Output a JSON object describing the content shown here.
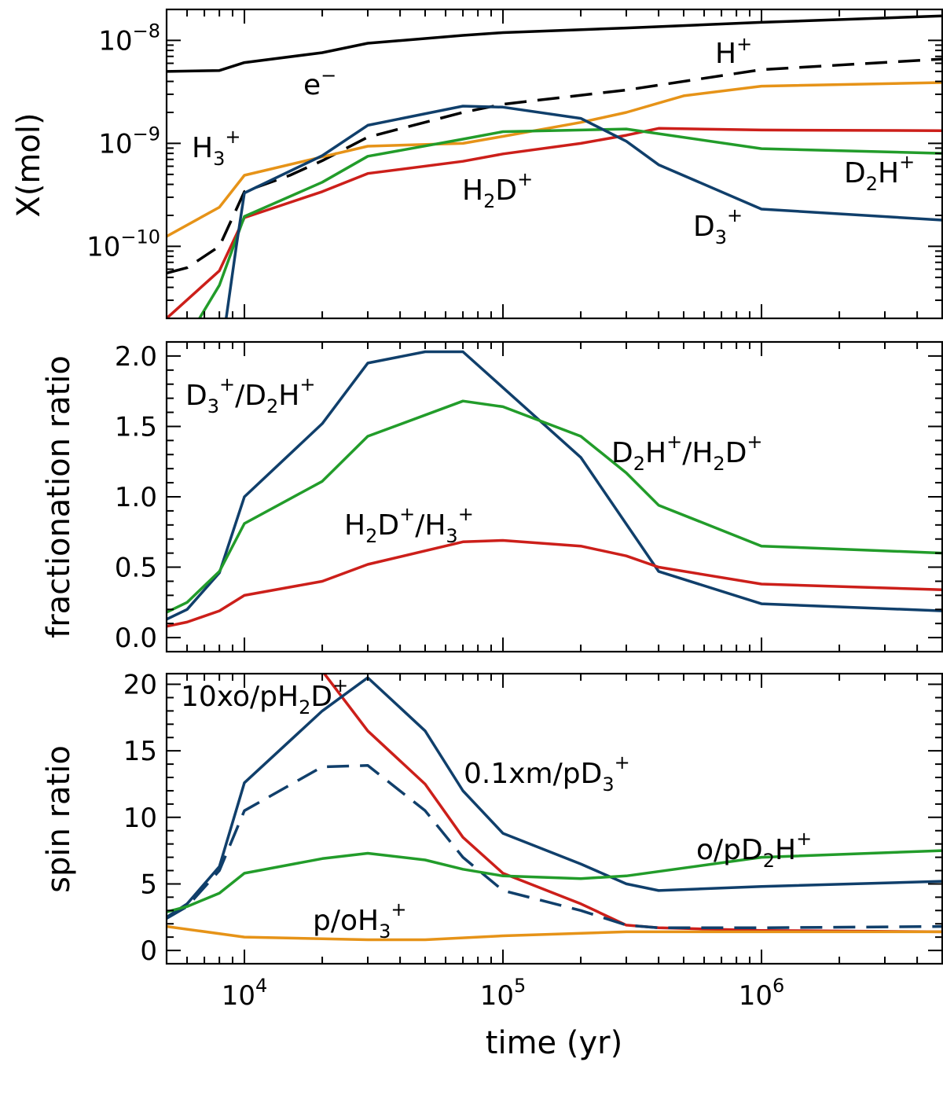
{
  "chart_data": [
    {
      "id": "top",
      "type": "line",
      "yscale": "log",
      "ylabel": "X(mol)",
      "xlim": [
        5000,
        5000000
      ],
      "ylim": [
        2e-11,
        2e-08
      ],
      "yticks": [
        {
          "value": 1e-10,
          "base": "10",
          "exp": "−10"
        },
        {
          "value": 1e-09,
          "base": "10",
          "exp": "−9"
        },
        {
          "value": 1e-08,
          "base": "10",
          "exp": "−8"
        }
      ],
      "series": [
        {
          "name": "e−",
          "color": "#000000",
          "dash": "",
          "x": [
            5000,
            8000,
            10000,
            20000,
            30000,
            70000,
            100000,
            300000,
            1000000,
            5000000
          ],
          "y": [
            5e-09,
            5.1e-09,
            6.1e-09,
            7.6e-09,
            9.4e-09,
            1.12e-08,
            1.19e-08,
            1.32e-08,
            1.5e-08,
            1.73e-08
          ]
        },
        {
          "name": "H+",
          "color": "#000000",
          "dash": "28,14",
          "x": [
            5000,
            6000,
            8000,
            10000,
            15000,
            20000,
            30000,
            70000,
            100000,
            300000,
            1000000,
            5000000
          ],
          "y": [
            5.5e-11,
            6.2e-11,
            1e-10,
            3.4e-10,
            4.9e-10,
            6.8e-10,
            1.15e-09,
            2e-09,
            2.4e-09,
            3.3e-09,
            5.2e-09,
            6.6e-09
          ]
        },
        {
          "name": "H3+",
          "color": "#e69318",
          "dash": "",
          "x": [
            5000,
            8000,
            10000,
            20000,
            30000,
            70000,
            100000,
            200000,
            300000,
            500000,
            1000000,
            5000000
          ],
          "y": [
            1.25e-10,
            2.4e-10,
            4.9e-10,
            7.4e-10,
            9.4e-10,
            1e-09,
            1.17e-09,
            1.6e-09,
            2e-09,
            2.9e-09,
            3.6e-09,
            3.9e-09
          ]
        },
        {
          "name": "H2D+",
          "color": "#cc1f1a",
          "dash": "",
          "x": [
            5000,
            8000,
            10000,
            20000,
            30000,
            70000,
            100000,
            200000,
            300000,
            400000,
            1000000,
            5000000
          ],
          "y": [
            2e-11,
            5.8e-11,
            1.9e-10,
            3.4e-10,
            5.1e-10,
            6.7e-10,
            7.9e-10,
            1e-09,
            1.2e-09,
            1.4e-09,
            1.35e-09,
            1.33e-09
          ]
        },
        {
          "name": "D2H+",
          "color": "#229c2a",
          "dash": "",
          "x": [
            6700,
            8000,
            10000,
            20000,
            30000,
            70000,
            100000,
            300000,
            1000000,
            5000000
          ],
          "y": [
            2e-11,
            4.2e-11,
            1.95e-10,
            4.2e-10,
            7.5e-10,
            1.1e-09,
            1.3e-09,
            1.38e-09,
            8.9e-10,
            8e-10
          ]
        },
        {
          "name": "D3+",
          "color": "#103f6b",
          "dash": "",
          "x": [
            8500,
            9300,
            10000,
            20000,
            30000,
            70000,
            100000,
            200000,
            300000,
            400000,
            1000000,
            5000000
          ],
          "y": [
            2e-11,
            1e-10,
            3.3e-10,
            7.6e-10,
            1.5e-09,
            2.3e-09,
            2.25e-09,
            1.75e-09,
            1.05e-09,
            6.2e-10,
            2.3e-10,
            1.8e-10
          ]
        }
      ],
      "annotations": [
        {
          "text": "e",
          "sup": "−"
        },
        {
          "text": "H",
          "sup": "+"
        },
        {
          "text": "H",
          "sub": "3",
          "sup": "+"
        },
        {
          "text": "H",
          "sub": "2",
          "text2": "D",
          "sup": "+"
        },
        {
          "text": "D",
          "sub": "2",
          "text2": "H",
          "sup": "+"
        },
        {
          "text": "D",
          "sub": "3",
          "sup": "+"
        }
      ]
    },
    {
      "id": "middle",
      "type": "line",
      "ylabel": "fractionation ratio",
      "xlim": [
        5000,
        5000000
      ],
      "ylim": [
        -0.1,
        2.1
      ],
      "yticks": [
        {
          "value": 0.0,
          "label": "0.0"
        },
        {
          "value": 0.5,
          "label": "0.5"
        },
        {
          "value": 1.0,
          "label": "1.0"
        },
        {
          "value": 1.5,
          "label": "1.5"
        },
        {
          "value": 2.0,
          "label": "2.0"
        }
      ],
      "series": [
        {
          "name": "D3+/D2H+",
          "color": "#103f6b",
          "dash": "",
          "x": [
            5000,
            6000,
            8000,
            10000,
            20000,
            30000,
            50000,
            70000,
            200000,
            400000,
            1000000,
            5000000
          ],
          "y": [
            0.13,
            0.2,
            0.46,
            1.0,
            1.52,
            1.95,
            2.03,
            2.03,
            1.28,
            0.47,
            0.24,
            0.19
          ]
        },
        {
          "name": "D2H+/H2D+",
          "color": "#229c2a",
          "dash": "",
          "x": [
            5000,
            6000,
            8000,
            10000,
            20000,
            30000,
            70000,
            100000,
            200000,
            300000,
            400000,
            1000000,
            5000000
          ],
          "y": [
            0.18,
            0.25,
            0.47,
            0.81,
            1.11,
            1.43,
            1.68,
            1.64,
            1.43,
            1.17,
            0.94,
            0.65,
            0.6
          ]
        },
        {
          "name": "H2D+/H3+",
          "color": "#cc1f1a",
          "dash": "",
          "x": [
            5000,
            6000,
            8000,
            10000,
            20000,
            30000,
            70000,
            100000,
            200000,
            300000,
            400000,
            1000000,
            5000000
          ],
          "y": [
            0.08,
            0.11,
            0.19,
            0.3,
            0.4,
            0.52,
            0.68,
            0.69,
            0.65,
            0.58,
            0.5,
            0.38,
            0.34
          ]
        }
      ],
      "annotations": [
        {
          "text": "D",
          "sub": "3",
          "sup": "+",
          "text2": "/D",
          "sub2": "2",
          "text3": "H",
          "sup2": "+"
        },
        {
          "text": "D",
          "sub": "2",
          "text2": "H",
          "sup": "+",
          "text3": "/H",
          "sub2": "2",
          "text4": "D",
          "sup2": "+"
        },
        {
          "text": "H",
          "sub": "2",
          "text2": "D",
          "sup": "+",
          "text3": "/H",
          "sub2": "3",
          "sup2": "+"
        }
      ]
    },
    {
      "id": "bottom",
      "type": "line",
      "ylabel": "spin ratio",
      "xlabel": "time (yr)",
      "xlim": [
        5000,
        5000000
      ],
      "ylim": [
        -1,
        20.8
      ],
      "yticks": [
        {
          "value": 0,
          "label": "0"
        },
        {
          "value": 5,
          "label": "5"
        },
        {
          "value": 10,
          "label": "10"
        },
        {
          "value": 15,
          "label": "15"
        },
        {
          "value": 20,
          "label": "20"
        }
      ],
      "xticks": [
        {
          "value": 10000,
          "base": "10",
          "exp": "4"
        },
        {
          "value": 100000,
          "base": "10",
          "exp": "5"
        },
        {
          "value": 1000000,
          "base": "10",
          "exp": "6"
        }
      ],
      "series": [
        {
          "name": "10xo/pH2D+",
          "color": "#cc1f1a",
          "dash": "",
          "x": [
            20000,
            30000,
            50000,
            70000,
            100000,
            200000,
            300000,
            400000,
            1000000,
            5000000
          ],
          "y": [
            21,
            16.5,
            12.5,
            8.5,
            5.8,
            3.5,
            1.9,
            1.7,
            1.5,
            1.4
          ]
        },
        {
          "name": "0.1xm/pD3+",
          "color": "#103f6b",
          "dash": "",
          "x": [
            5000,
            6000,
            8000,
            10000,
            20000,
            30000,
            50000,
            70000,
            100000,
            200000,
            300000,
            400000,
            1000000,
            5000000
          ],
          "y": [
            2.5,
            3.5,
            6.3,
            12.6,
            18.0,
            20.5,
            16.5,
            12.0,
            8.8,
            6.5,
            5.0,
            4.5,
            4.8,
            5.2
          ]
        },
        {
          "name": "0.1xm/pD3+ (dashed)",
          "color": "#103f6b",
          "dash": "28,14",
          "x": [
            5000,
            6000,
            8000,
            10000,
            20000,
            30000,
            50000,
            70000,
            100000,
            200000,
            300000,
            400000,
            1000000,
            5000000
          ],
          "y": [
            2.4,
            3.3,
            6.0,
            10.5,
            13.8,
            13.9,
            10.5,
            7.0,
            4.5,
            3.0,
            1.9,
            1.7,
            1.7,
            1.8
          ]
        },
        {
          "name": "o/pD2H+",
          "color": "#229c2a",
          "dash": "",
          "x": [
            5000,
            6000,
            8000,
            10000,
            20000,
            30000,
            50000,
            70000,
            100000,
            200000,
            300000,
            1000000,
            5000000
          ],
          "y": [
            2.9,
            3.3,
            4.3,
            5.8,
            6.9,
            7.3,
            6.8,
            6.1,
            5.6,
            5.4,
            5.6,
            7.0,
            7.5
          ]
        },
        {
          "name": "p/oH3+",
          "color": "#e69318",
          "dash": "",
          "x": [
            5000,
            10000,
            30000,
            50000,
            100000,
            300000,
            1000000,
            5000000
          ],
          "y": [
            1.8,
            1.0,
            0.8,
            0.8,
            1.1,
            1.4,
            1.4,
            1.4
          ]
        }
      ],
      "annotations": [
        {
          "text": "10xo/pH",
          "sub": "2",
          "text2": "D",
          "sup": "+"
        },
        {
          "text": "0.1xm/pD",
          "sub": "3",
          "sup": "+"
        },
        {
          "text": "o/pD",
          "sub": "2",
          "text2": "H",
          "sup": "+"
        },
        {
          "text": "p/oH",
          "sub": "3",
          "sup": "+"
        }
      ]
    }
  ]
}
